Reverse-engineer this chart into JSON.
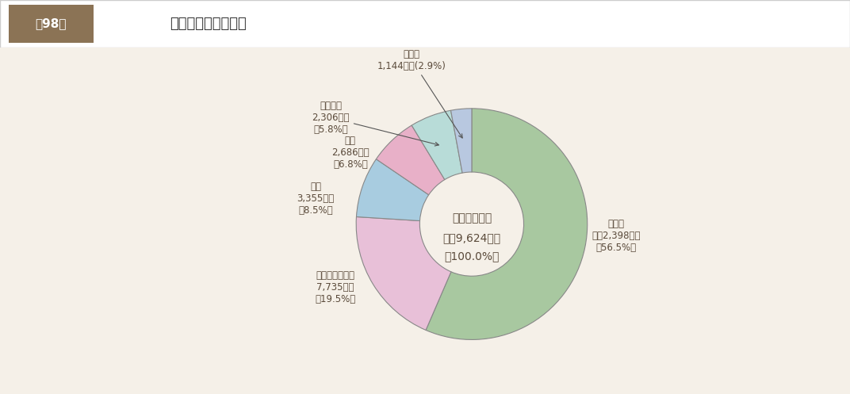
{
  "title": "第98図　企業債発行額の状況",
  "title_box_label": "第98図",
  "title_text": "企業債発行額の状況",
  "center_label_line1": "企業債発行額",
  "center_label_line2": "３兆9,624億円",
  "center_label_line3": "（100.0%）",
  "segments": [
    {
      "label": "下水道",
      "sub_label": "２兆2,398億円",
      "pct_label": "（56.5%）",
      "value": 56.5,
      "color": "#a8c8a0"
    },
    {
      "label": "水道（含簡水）",
      "sub_label": "7,735億円",
      "pct_label": "（19.5%）",
      "value": 19.5,
      "color": "#e8c0d8"
    },
    {
      "label": "病院",
      "sub_label": "3,355億円",
      "pct_label": "（8.5%）",
      "value": 8.5,
      "color": "#a8cce0"
    },
    {
      "label": "交通",
      "sub_label": "2,686億円",
      "pct_label": "（6.8%）",
      "value": 6.8,
      "color": "#e8b0c8"
    },
    {
      "label": "宅地造成",
      "sub_label": "2,306億円",
      "pct_label": "（5.8%）",
      "value": 5.8,
      "color": "#b8dcd8"
    },
    {
      "label": "その他",
      "sub_label": "1,144億円(2.9%)",
      "pct_label": "",
      "value": 2.9,
      "color": "#b8c8e0"
    }
  ],
  "background_color": "#f5f0e8",
  "header_bg_color": "#8b7355",
  "text_color": "#5a4a3a",
  "wedge_edge_color": "#888888",
  "figure_width": 10.72,
  "figure_height": 4.97
}
